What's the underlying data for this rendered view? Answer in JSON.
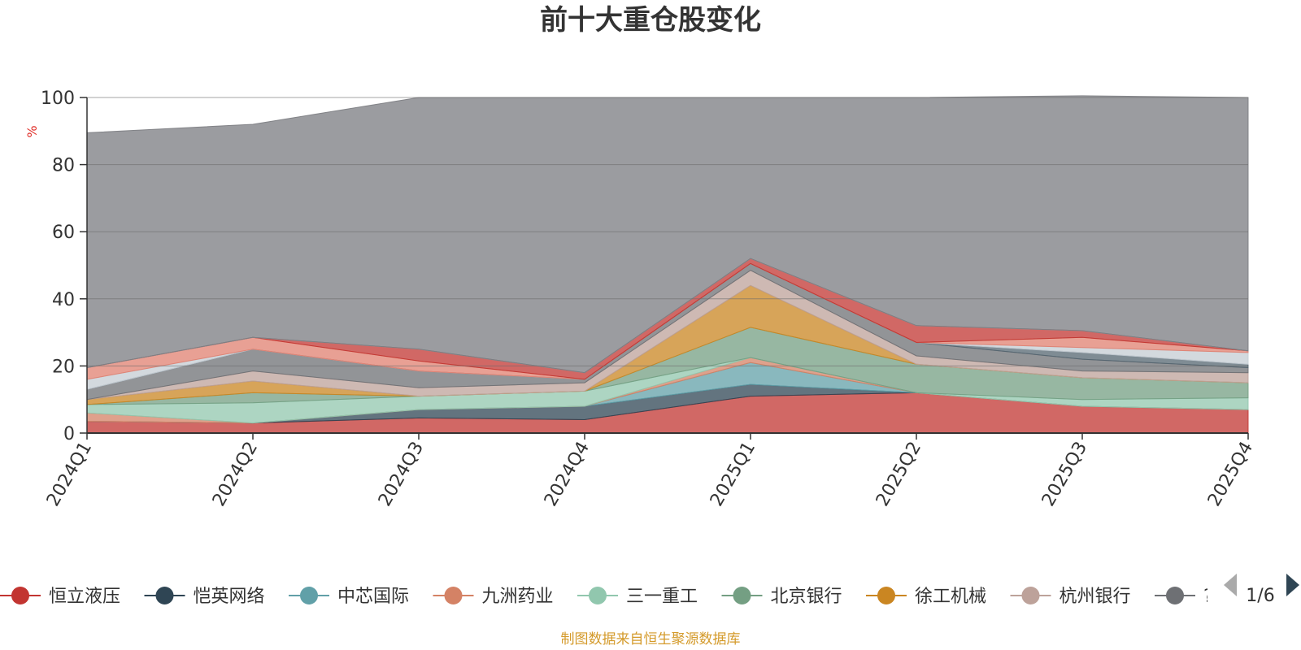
{
  "chart_data": {
    "type": "area",
    "stacked": true,
    "title": "前十大重仓股变化",
    "ylabel": "%",
    "ylim": [
      0,
      100
    ],
    "yticks": [
      0,
      20,
      40,
      60,
      80,
      100
    ],
    "grid": true,
    "legend_position": "bottom",
    "categories": [
      "2024Q1",
      "2024Q2",
      "2024Q3",
      "2024Q4",
      "2025Q1",
      "2025Q2",
      "2025Q3",
      "2025Q4"
    ],
    "series": [
      {
        "name": "恒立液压",
        "color": "#c23531",
        "legend_color": "#c23531",
        "values": [
          3.5,
          3.0,
          4.5,
          4.0,
          11.0,
          12.0,
          8.0,
          7.0
        ]
      },
      {
        "name": "恺英网络",
        "color": "#2f4554",
        "legend_color": "#2f4554",
        "values": [
          0,
          0,
          2.5,
          4.0,
          3.5,
          0,
          0,
          0
        ]
      },
      {
        "name": "中芯国际",
        "color": "#61a0a8",
        "legend_color": "#61a0a8",
        "values": [
          0,
          0,
          0,
          0,
          6.5,
          0,
          0,
          0
        ]
      },
      {
        "name": "九洲药业",
        "color": "#d48265",
        "legend_color": "#d48265",
        "values": [
          2.5,
          0,
          0,
          0,
          1.5,
          0,
          0,
          0
        ]
      },
      {
        "name": "三一重工",
        "color": "#91c7ae",
        "legend_color": "#91c7ae",
        "values": [
          2.5,
          6.0,
          4.0,
          4.5,
          0,
          0,
          2.0,
          3.5
        ]
      },
      {
        "name": "北京银行",
        "color": "#749f83",
        "legend_color": "#749f83",
        "values": [
          0,
          3.0,
          0,
          0,
          9.0,
          8.5,
          6.5,
          4.5
        ]
      },
      {
        "name": "徐工机械",
        "color": "#ca8622",
        "legend_color": "#ca8622",
        "values": [
          1.5,
          3.5,
          0,
          0,
          12.5,
          0,
          0,
          0
        ]
      },
      {
        "name": "杭州银行",
        "color": "#bda29a",
        "legend_color": "#bda29a",
        "values": [
          0,
          3.0,
          2.5,
          2.5,
          4.5,
          2.5,
          2.0,
          3.0
        ]
      },
      {
        "name": "?",
        "color": "#6e7074",
        "legend_color": "#6e7074",
        "values": [
          3.0,
          6.5,
          5.0,
          1.0,
          2.0,
          4.0,
          3.5,
          1.5
        ]
      },
      {
        "name": "",
        "color": "#546570",
        "values": [
          0,
          0,
          0,
          0,
          0,
          0,
          2.0,
          1.0
        ]
      },
      {
        "name": "",
        "color": "#c4ccd3",
        "values": [
          3.0,
          0,
          0,
          0,
          0,
          0,
          1.5,
          3.5
        ]
      },
      {
        "name": "",
        "color": "#e08070",
        "values": [
          3.5,
          3.5,
          3.0,
          0,
          0,
          0,
          3.0,
          0.5
        ]
      },
      {
        "name": "",
        "color": "#c23531",
        "values": [
          0,
          0,
          3.5,
          2.0,
          1.5,
          5.0,
          2.0,
          0
        ]
      },
      {
        "name": "",
        "color": "#bbbbbb",
        "values": [
          0,
          0,
          0,
          0,
          0,
          0,
          0,
          0
        ]
      },
      {
        "name": "",
        "color": "#7a7b80",
        "values": [
          70.0,
          63.5,
          75.0,
          82.0,
          48.0,
          68.0,
          70.0,
          75.5
        ]
      }
    ]
  },
  "legend": {
    "items": [
      {
        "name": "恒立液压",
        "color": "#c23531"
      },
      {
        "name": "恺英网络",
        "color": "#2f4554"
      },
      {
        "name": "中芯国际",
        "color": "#61a0a8"
      },
      {
        "name": "九洲药业",
        "color": "#d48265"
      },
      {
        "name": "三一重工",
        "color": "#91c7ae"
      },
      {
        "name": "北京银行",
        "color": "#749f83"
      },
      {
        "name": "徐工机械",
        "color": "#ca8622"
      },
      {
        "name": "杭州银行",
        "color": "#bda29a"
      },
      {
        "name": "?",
        "color": "#6e7074"
      }
    ],
    "page_indicator": "1/6"
  },
  "footer": {
    "source_text": "制图数据来自恒生聚源数据库"
  }
}
